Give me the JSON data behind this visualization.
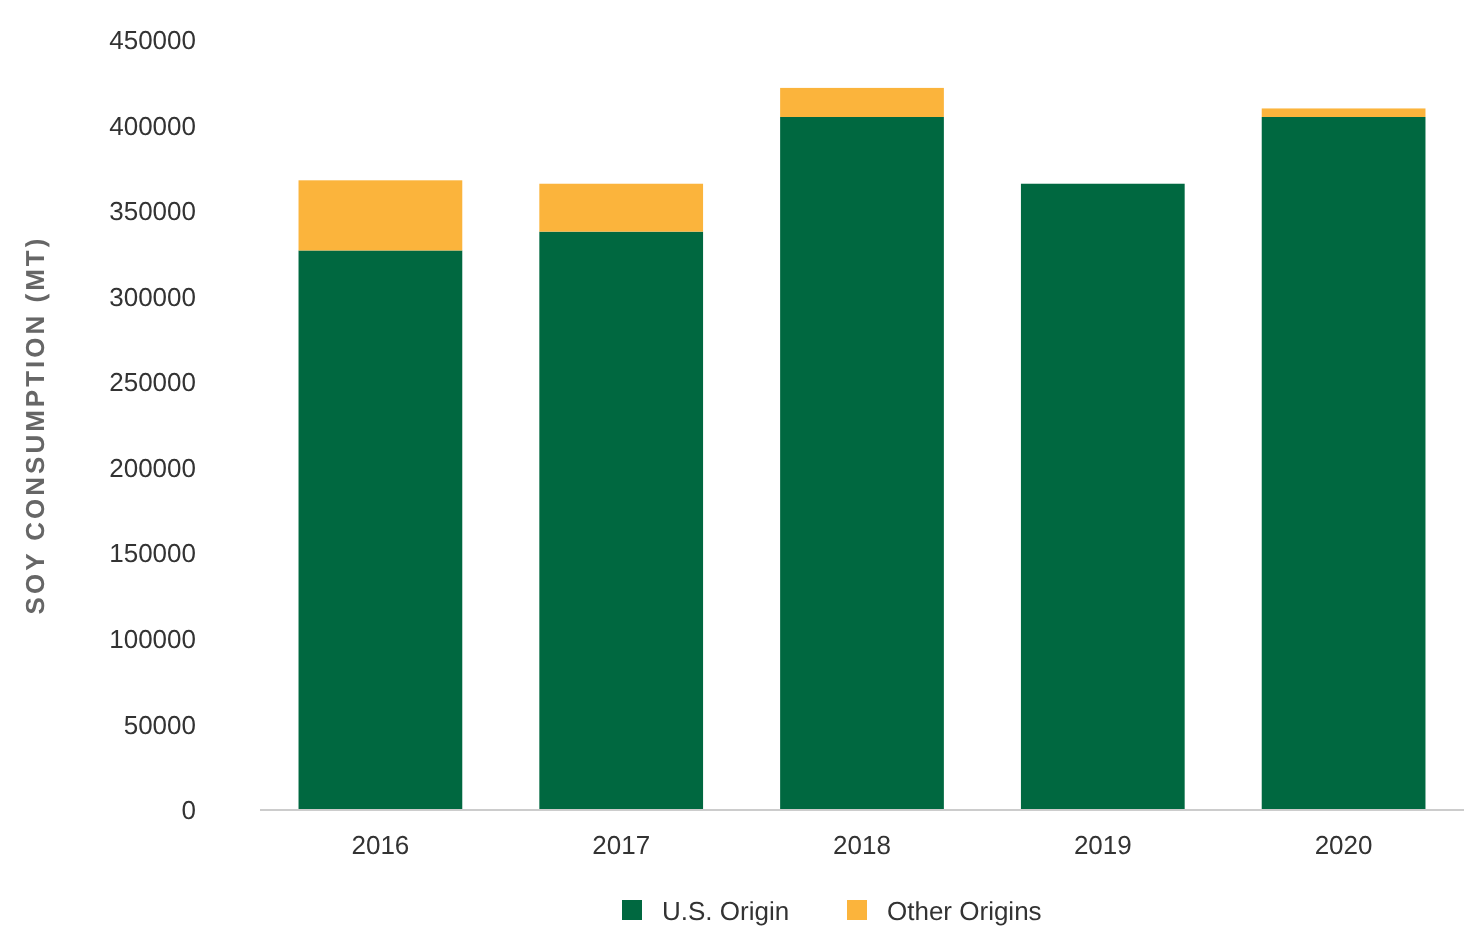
{
  "chart_data": {
    "type": "bar",
    "stacked": true,
    "ylabel": "SOY CONSUMPTION (MT)",
    "categories": [
      "2016",
      "2017",
      "2018",
      "2019",
      "2020"
    ],
    "series": [
      {
        "name": "U.S. Origin",
        "color": "#006840",
        "values": [
          327000,
          338000,
          405000,
          366000,
          405000
        ]
      },
      {
        "name": "Other Origins",
        "color": "#fbb43c",
        "values": [
          41000,
          28000,
          17000,
          0,
          5000
        ]
      }
    ],
    "ylim": [
      0,
      450000
    ],
    "yticks": [
      0,
      50000,
      100000,
      150000,
      200000,
      250000,
      300000,
      350000,
      400000,
      450000
    ],
    "grid": false,
    "legend": "bottom"
  }
}
